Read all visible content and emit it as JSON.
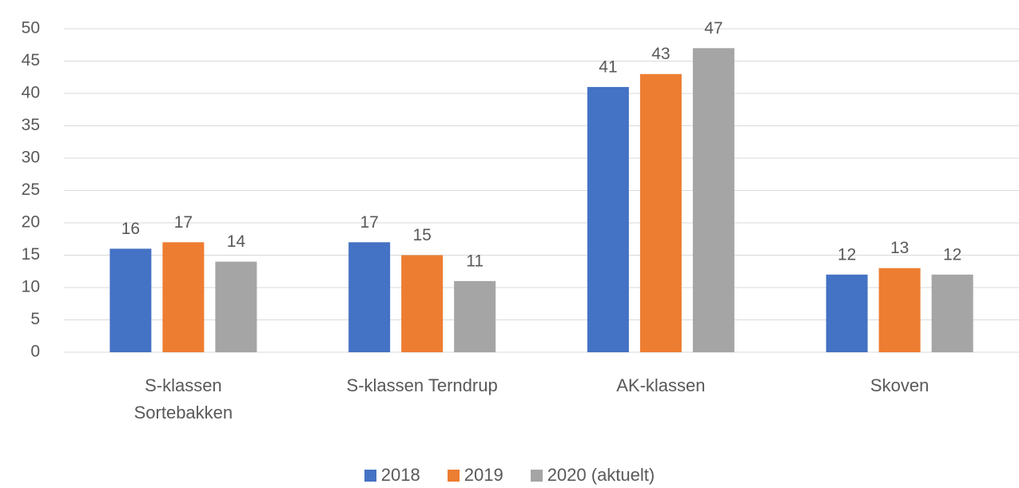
{
  "chart_data": {
    "type": "bar",
    "categories": [
      "S-klassen Sortebakken",
      "S-klassen Terndrup",
      "AK-klassen",
      "Skoven"
    ],
    "series": [
      {
        "name": "2018",
        "color": "#4472c4",
        "values": [
          16,
          17,
          41,
          12
        ]
      },
      {
        "name": "2019",
        "color": "#ed7d31",
        "values": [
          17,
          15,
          43,
          13
        ]
      },
      {
        "name": "2020 (aktuelt)",
        "color": "#a5a5a5",
        "values": [
          14,
          11,
          47,
          12
        ]
      }
    ],
    "ylim": [
      0,
      50
    ],
    "yticks": [
      0,
      5,
      10,
      15,
      20,
      25,
      30,
      35,
      40,
      45,
      50
    ],
    "grid": true,
    "legend": "bottom"
  }
}
